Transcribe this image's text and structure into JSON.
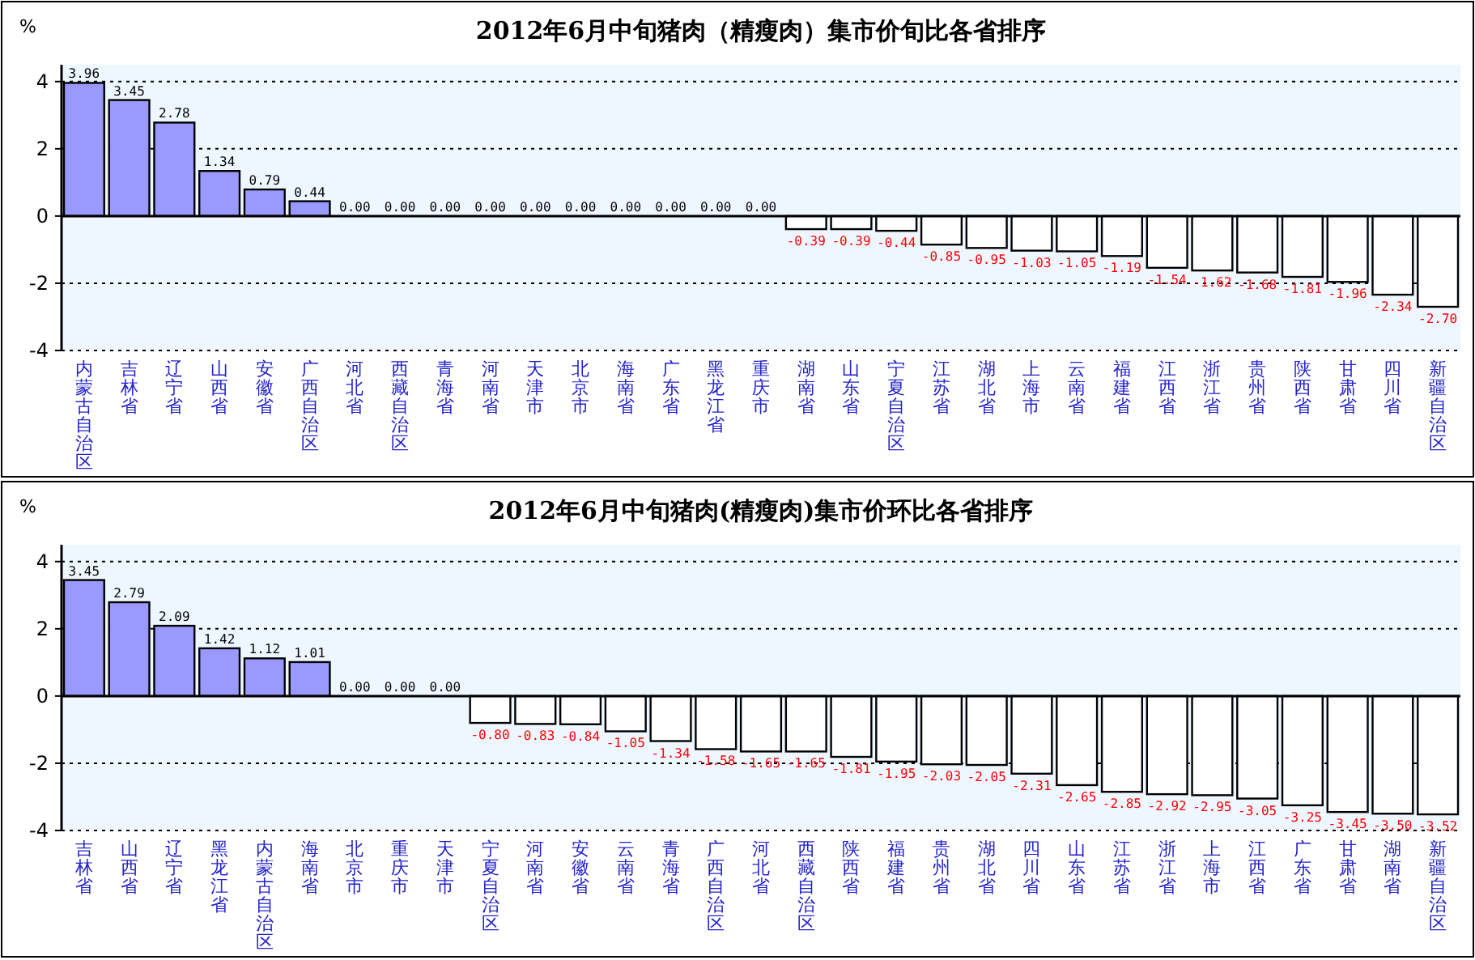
{
  "chart_data": [
    {
      "type": "bar",
      "title": "2012年6月中旬猪肉（精瘦肉）集市价旬比各省排序",
      "ylabel": "%",
      "grid": "y",
      "ylim": [
        -4,
        4.5
      ],
      "yticks": [
        -4,
        -2,
        0,
        2,
        4
      ],
      "categories": [
        "内蒙古自治区",
        "吉林省",
        "辽宁省",
        "山西省",
        "安徽省",
        "广西自治区",
        "河北省",
        "西藏自治区",
        "青海省",
        "河南省",
        "天津市",
        "北京市",
        "海南省",
        "广东省",
        "黑龙江省",
        "重庆市",
        "湖南省",
        "山东省",
        "宁夏自治区",
        "江苏省",
        "湖北省",
        "上海市",
        "云南省",
        "福建省",
        "江西省",
        "浙江省",
        "贵州省",
        "陕西省",
        "甘肃省",
        "四川省",
        "新疆自治区"
      ],
      "values": [
        3.96,
        3.45,
        2.78,
        1.34,
        0.79,
        0.44,
        0,
        0,
        0,
        0,
        0,
        0,
        0,
        0,
        0,
        0,
        -0.39,
        -0.39,
        -0.44,
        -0.85,
        -0.95,
        -1.03,
        -1.05,
        -1.19,
        -1.54,
        -1.62,
        -1.68,
        -1.81,
        -1.96,
        -2.34,
        -2.7
      ],
      "value_labels": [
        "3.96",
        "3.45",
        "2.78",
        "1.34",
        "0.79",
        "0.44",
        "0.00",
        "0.00",
        "0.00",
        "0.00",
        "0.00",
        "0.00",
        "0.00",
        "0.00",
        "0.00",
        "0.00",
        "-0.39",
        "-0.39",
        "-0.44",
        "-0.85",
        "-0.95",
        "-1.03",
        "-1.05",
        "-1.19",
        "-1.54",
        "-1.62",
        "-1.68",
        "-1.81",
        "-1.96",
        "-2.34",
        "-2.70"
      ],
      "colors": [
        "#9999ff",
        "#9999ff",
        "#9999ff",
        "#9999ff",
        "#9999ff",
        "#9999ff",
        "#9999ff",
        "#9999ff",
        "#9999ff",
        "#9999ff",
        "#9999ff",
        "#9999ff",
        "#9999ff",
        "#9999ff",
        "#9999ff",
        "#9999ff",
        "#ffffff",
        "#ffffff",
        "#ffffff",
        "#ffffff",
        "#ffffff",
        "#ffffff",
        "#ffffff",
        "#ffffff",
        "#ffffff",
        "#ffffff",
        "#ffffff",
        "#ffffff",
        "#ffffff",
        "#ffffff",
        "#ffffff"
      ]
    },
    {
      "type": "bar",
      "title": "2012年6月中旬猪肉(精瘦肉)集市价环比各省排序",
      "ylabel": "%",
      "grid": "y",
      "ylim": [
        -4,
        4.5
      ],
      "yticks": [
        -4,
        -2,
        0,
        2,
        4
      ],
      "categories": [
        "吉林省",
        "山西省",
        "辽宁省",
        "黑龙江省",
        "内蒙古自治区",
        "海南省",
        "北京市",
        "重庆市",
        "天津市",
        "宁夏自治区",
        "河南省",
        "安徽省",
        "云南省",
        "青海省",
        "广西自治区",
        "河北省",
        "西藏自治区",
        "陕西省",
        "福建省",
        "贵州省",
        "湖北省",
        "四川省",
        "山东省",
        "江苏省",
        "浙江省",
        "上海市",
        "江西省",
        "广东省",
        "甘肃省",
        "湖南省",
        "新疆自治区"
      ],
      "values": [
        3.45,
        2.79,
        2.09,
        1.42,
        1.12,
        1.01,
        0,
        0,
        0,
        -0.8,
        -0.83,
        -0.84,
        -1.05,
        -1.34,
        -1.58,
        -1.65,
        -1.65,
        -1.81,
        -1.95,
        -2.03,
        -2.05,
        -2.31,
        -2.65,
        -2.85,
        -2.92,
        -2.95,
        -3.05,
        -3.25,
        -3.45,
        -3.5,
        -3.52
      ],
      "value_labels": [
        "3.45",
        "2.79",
        "2.09",
        "1.42",
        "1.12",
        "1.01",
        "0.00",
        "0.00",
        "0.00",
        "-0.80",
        "-0.83",
        "-0.84",
        "-1.05",
        "-1.34",
        "-1.58",
        "-1.65",
        "-1.65",
        "-1.81",
        "-1.95",
        "-2.03",
        "-2.05",
        "-2.31",
        "-2.65",
        "-2.85",
        "-2.92",
        "-2.95",
        "-3.05",
        "-3.25",
        "-3.45",
        "-3.50",
        "-3.52"
      ],
      "colors": [
        "#9999ff",
        "#9999ff",
        "#9999ff",
        "#9999ff",
        "#9999ff",
        "#9999ff",
        "#9999ff",
        "#9999ff",
        "#9999ff",
        "#ffffff",
        "#ffffff",
        "#ffffff",
        "#ffffff",
        "#ffffff",
        "#ffffff",
        "#ffffff",
        "#ffffff",
        "#ffffff",
        "#ffffff",
        "#ffffff",
        "#ffffff",
        "#ffffff",
        "#ffffff",
        "#ffffff",
        "#ffffff",
        "#ffffff",
        "#ffffff",
        "#ffffff",
        "#ffffff",
        "#ffffff",
        "#ffffff"
      ]
    }
  ]
}
